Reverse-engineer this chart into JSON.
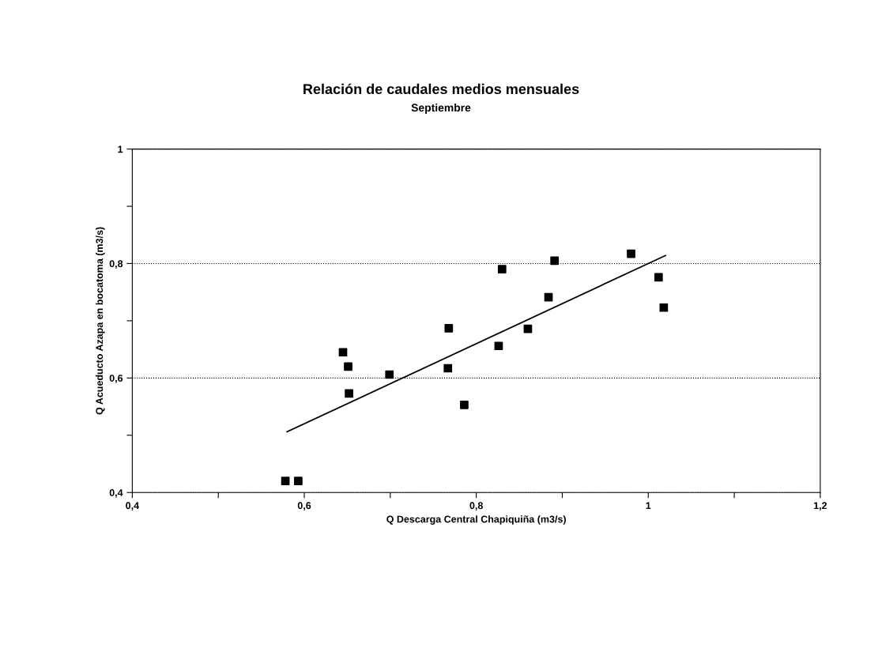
{
  "chart_data": {
    "type": "scatter",
    "title": "Relación de caudales medios mensuales",
    "subtitle": "Septiembre",
    "xlabel": "Q Descarga Central Chapiquiña (m3/s)",
    "ylabel": "Q Acueducto Azapa en bocatoma (m3/s)",
    "series": [
      {
        "color": "#000000",
        "marker": "square",
        "x": [
          0.578,
          0.593,
          0.645,
          0.651,
          0.652,
          0.699,
          0.767,
          0.768,
          0.786,
          0.826,
          0.83,
          0.86,
          0.884,
          0.891,
          0.98,
          1.012,
          1.018
        ],
        "values": [
          0.42,
          0.42,
          0.645,
          0.62,
          0.573,
          0.606,
          0.617,
          0.687,
          0.553,
          0.656,
          0.79,
          0.686,
          0.741,
          0.805,
          0.817,
          0.776,
          0.723
        ]
      },
      {
        "type": "line",
        "color": "#000000",
        "marker": "none",
        "line_style": "solid",
        "x": [
          0.58,
          1.02
        ],
        "values": [
          0.506,
          0.814
        ]
      }
    ],
    "xlim": [
      0.4,
      1.2
    ],
    "ylim": [
      0.4,
      1
    ],
    "xticks": [
      {
        "value": 0.4,
        "label": "0,4"
      },
      {
        "value": 0.5,
        "label": null
      },
      {
        "value": 0.6,
        "label": "0,6"
      },
      {
        "value": 0.7,
        "label": null
      },
      {
        "value": 0.8,
        "label": "0,8"
      },
      {
        "value": 0.9,
        "label": null
      },
      {
        "value": 1,
        "label": "1"
      },
      {
        "value": 1.1,
        "label": null
      },
      {
        "value": 1.2,
        "label": "1,2"
      }
    ],
    "yticks": [
      {
        "value": 0.4,
        "label": "0,4"
      },
      {
        "value": 0.5,
        "label": null
      },
      {
        "value": 0.6,
        "label": "0,6"
      },
      {
        "value": 0.7,
        "label": null
      },
      {
        "value": 0.8,
        "label": "0,8"
      },
      {
        "value": 0.9,
        "label": null
      },
      {
        "value": 1,
        "label": "1"
      }
    ],
    "grid": "y"
  }
}
